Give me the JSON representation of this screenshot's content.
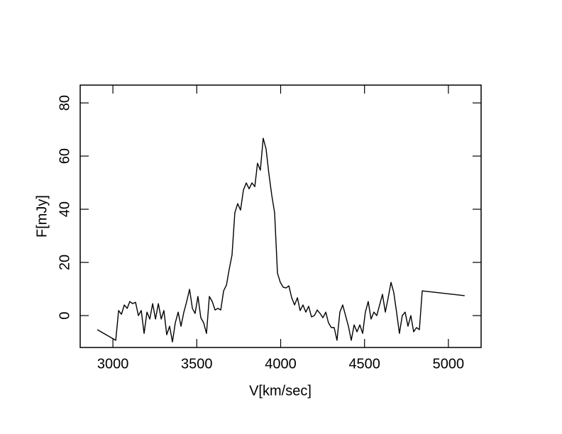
{
  "chart_data": {
    "type": "line",
    "x_label": "V[km/sec]",
    "y_label": "F[mJy]",
    "xlim": [
      2805,
      5195
    ],
    "ylim": [
      -12,
      86.7
    ],
    "xticks": [
      3000,
      3500,
      4000,
      4500,
      5000
    ],
    "yticks": [
      0,
      20,
      40,
      60,
      80
    ],
    "color": "#000000",
    "x": [
      2907,
      3017,
      3034,
      3051,
      3068,
      3085,
      3101,
      3118,
      3135,
      3152,
      3169,
      3186,
      3203,
      3220,
      3237,
      3254,
      3271,
      3288,
      3304,
      3321,
      3338,
      3355,
      3372,
      3389,
      3406,
      3423,
      3440,
      3457,
      3474,
      3490,
      3507,
      3524,
      3541,
      3558,
      3575,
      3592,
      3609,
      3626,
      3643,
      3660,
      3677,
      3693,
      3710,
      3727,
      3744,
      3761,
      3778,
      3795,
      3812,
      3829,
      3846,
      3862,
      3879,
      3896,
      3913,
      3930,
      3947,
      3964,
      3981,
      3998,
      4015,
      4032,
      4049,
      4066,
      4083,
      4100,
      4116,
      4133,
      4150,
      4167,
      4184,
      4201,
      4218,
      4235,
      4252,
      4269,
      4285,
      4302,
      4319,
      4336,
      4353,
      4370,
      4387,
      4404,
      4421,
      4438,
      4455,
      4472,
      4489,
      4505,
      4522,
      4539,
      4556,
      4573,
      4590,
      4607,
      4624,
      4641,
      4658,
      4674,
      4691,
      4708,
      4725,
      4742,
      4759,
      4776,
      4793,
      4810,
      4827,
      4844,
      5097
    ],
    "values": [
      -5.3,
      -9.3,
      1.9,
      0.5,
      4,
      2.7,
      5.3,
      4.5,
      5,
      0,
      1.9,
      -6.7,
      1.3,
      -1.3,
      4.5,
      -1.3,
      4.5,
      -1.3,
      1.9,
      -7.2,
      -4,
      -9.9,
      -2.7,
      1.3,
      -4,
      1.3,
      5.3,
      9.9,
      2.7,
      0.8,
      7.2,
      -0.8,
      -2.7,
      -6.7,
      7.2,
      5.3,
      2.1,
      2.7,
      2.1,
      9.3,
      11.5,
      17.3,
      22.7,
      38.7,
      42.1,
      39.7,
      47.2,
      49.9,
      47.7,
      49.9,
      48.5,
      57.3,
      54.7,
      66.7,
      62.7,
      53.3,
      45.3,
      38.7,
      16,
      12.5,
      10.7,
      10.4,
      11.2,
      6.7,
      4,
      6.7,
      1.9,
      4,
      1.3,
      3.5,
      -0.5,
      0,
      2.1,
      0.8,
      -0.8,
      1.3,
      -2.7,
      -4.5,
      -4.5,
      -9.3,
      1.3,
      4,
      0,
      -4,
      -9.3,
      -3.5,
      -6.1,
      -3.5,
      -6.7,
      1.3,
      5.3,
      -1.3,
      1.3,
      0,
      4,
      8,
      1.3,
      6.7,
      12.5,
      8.8,
      1.3,
      -6.7,
      0,
      1.3,
      -4,
      0,
      -6.1,
      -4.5,
      -5.3,
      9.3,
      7.5
    ]
  }
}
